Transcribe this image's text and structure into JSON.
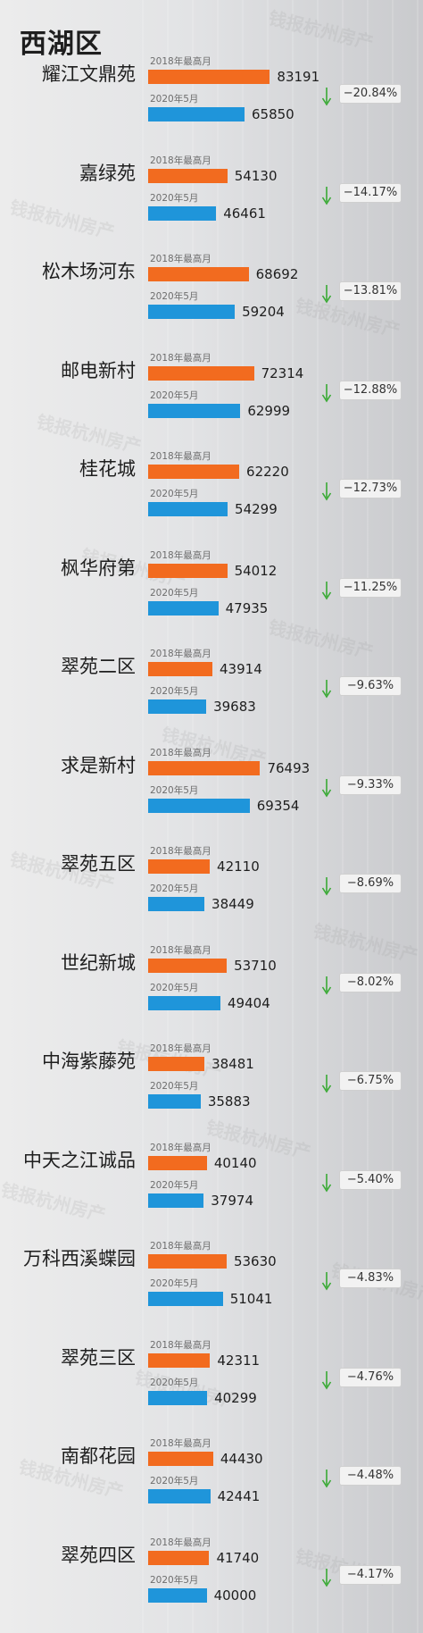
{
  "header": {
    "title": "西湖区"
  },
  "watermark": "钱报杭州房产",
  "colors": {
    "bar_2018": "#f26b1f",
    "bar_2020": "#1f95da",
    "arrow": "#3aaa35"
  },
  "chart_data": {
    "type": "bar",
    "orientation": "horizontal",
    "grid": true,
    "series_labels": [
      "2018年最高月",
      "2020年5月"
    ],
    "categories": [
      "耀江文鼎苑",
      "嘉绿苑",
      "松木场河东",
      "邮电新村",
      "桂花城",
      "枫华府第",
      "翠苑二区",
      "求是新村",
      "翠苑五区",
      "世纪新城",
      "中海紫藤苑",
      "中天之江诚品",
      "万科西溪蝶园",
      "翠苑三区",
      "南都花园",
      "翠苑四区"
    ],
    "series": [
      {
        "name": "2018年最高月",
        "values": [
          83191,
          54130,
          68692,
          72314,
          62220,
          54012,
          43914,
          76493,
          42110,
          53710,
          38481,
          40140,
          53630,
          42311,
          44430,
          41740
        ]
      },
      {
        "name": "2020年5月",
        "values": [
          65850,
          46461,
          59204,
          62999,
          54299,
          47935,
          39683,
          69354,
          38449,
          49404,
          35883,
          37974,
          51041,
          40299,
          42441,
          40000
        ]
      }
    ],
    "change_labels": [
      "−20.84%",
      "−14.17%",
      "−13.81%",
      "−12.88%",
      "−12.73%",
      "−11.25%",
      "−9.63%",
      "−9.33%",
      "−8.69%",
      "−8.02%",
      "−6.75%",
      "−5.40%",
      "−4.83%",
      "−4.76%",
      "−4.48%",
      "−4.17%"
    ]
  }
}
